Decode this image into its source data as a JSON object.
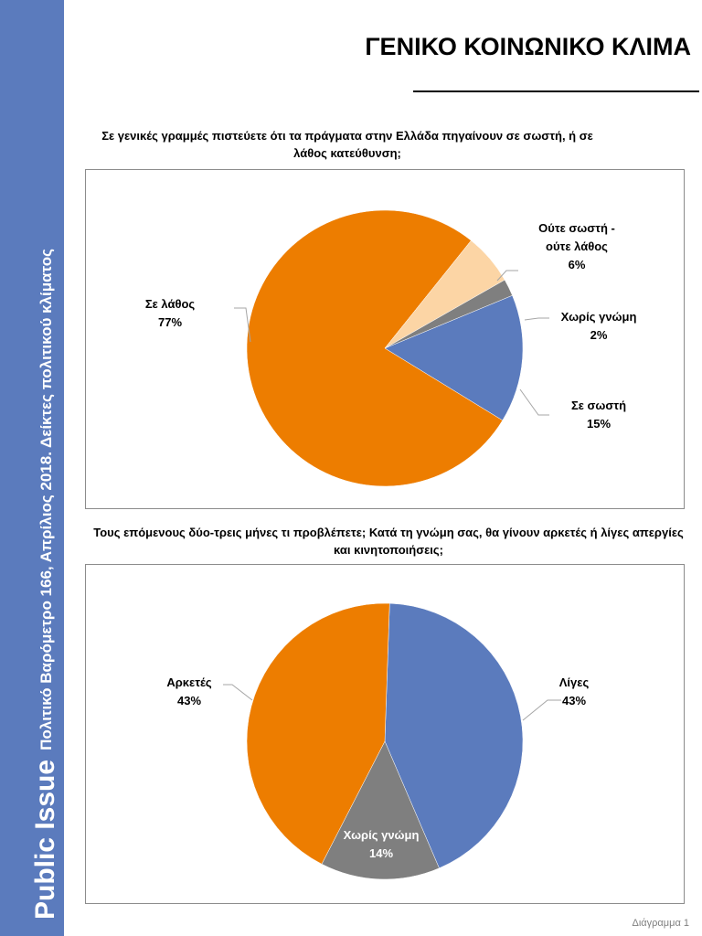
{
  "sidebar": {
    "brand": "Public Issue",
    "subtitle": "Πολιτικό Βαρόμετρο 166, Απρίλιος 2018. Δείκτες πολιτικού κλίματος"
  },
  "page_title": "ΓΕΝΙΚΟ ΚΟΙΝΩΝΙΚΟ ΚΛΙΜΑ",
  "footer": "Διάγραμμα 1",
  "chart_data": [
    {
      "type": "pie",
      "title": "Σε γενικές γραμμές πιστεύετε ότι τα πράγματα στην Ελλάδα πηγαίνουν σε σωστή, ή σε λάθος κατεύθυνση;",
      "slices": [
        {
          "name": "Σε σωστή",
          "value": 15,
          "label": "15%",
          "color": "#5b7bbd"
        },
        {
          "name": "Σε λάθος",
          "value": 77,
          "label": "77%",
          "color": "#ed7d00"
        },
        {
          "name": "Ούτε σωστή - ούτε λάθος",
          "value": 6,
          "label": "6%",
          "color": "#fcd5a5"
        },
        {
          "name": "Χωρίς γνώμη",
          "value": 2,
          "label": "2%",
          "color": "#7f7f7f"
        }
      ],
      "label_lines": [
        [
          "Ούτε σωστή -",
          "ούτε λάθος"
        ],
        [
          "Σε λάθος"
        ],
        [
          "Χωρίς γνώμη"
        ],
        [
          "Σε σωστή"
        ]
      ]
    },
    {
      "type": "pie",
      "title": "Τους επόμενους δύο-τρεις μήνες τι προβλέπετε; Κατά τη γνώμη σας, θα γίνουν αρκετές ή λίγες απεργίες και κινητοποιήσεις;",
      "slices": [
        {
          "name": "Λίγες",
          "value": 43,
          "label": "43%",
          "color": "#5b7bbd"
        },
        {
          "name": "Χωρίς γνώμη",
          "value": 14,
          "label": "14%",
          "color": "#7f7f7f"
        },
        {
          "name": "Αρκετές",
          "value": 43,
          "label": "43%",
          "color": "#ed7d00"
        }
      ]
    }
  ]
}
